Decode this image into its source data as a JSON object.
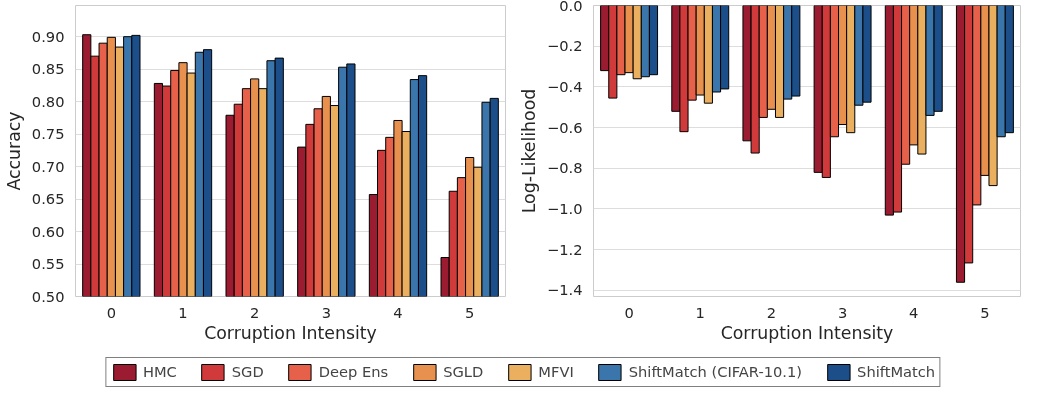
{
  "chart_data": [
    {
      "type": "bar",
      "xlabel": "Corruption Intensity",
      "ylabel": "Accuracy",
      "categories": [
        "0",
        "1",
        "2",
        "3",
        "4",
        "5"
      ],
      "ylim": [
        0.5,
        0.948
      ],
      "yticks": [
        {
          "value": 0.5,
          "label": "0.50"
        },
        {
          "value": 0.55,
          "label": "0.55"
        },
        {
          "value": 0.6,
          "label": "0.60"
        },
        {
          "value": 0.65,
          "label": "0.65"
        },
        {
          "value": 0.7,
          "label": "0.70"
        },
        {
          "value": 0.75,
          "label": "0.75"
        },
        {
          "value": 0.8,
          "label": "0.80"
        },
        {
          "value": 0.85,
          "label": "0.85"
        },
        {
          "value": 0.9,
          "label": "0.90"
        }
      ],
      "grid": "y",
      "legend": "bottom",
      "series": [
        {
          "name": "HMC",
          "color": "#9b1b30",
          "values": [
            0.903,
            0.828,
            0.779,
            0.73,
            0.657,
            0.56
          ]
        },
        {
          "name": "SGD",
          "color": "#d03a3a",
          "values": [
            0.87,
            0.824,
            0.796,
            0.765,
            0.725,
            0.662
          ]
        },
        {
          "name": "Deep Ens",
          "color": "#e6604a",
          "values": [
            0.89,
            0.848,
            0.82,
            0.789,
            0.745,
            0.683
          ]
        },
        {
          "name": "SGLD",
          "color": "#e8914f",
          "values": [
            0.899,
            0.86,
            0.835,
            0.808,
            0.771,
            0.714
          ]
        },
        {
          "name": "MFVI",
          "color": "#eab060",
          "values": [
            0.884,
            0.844,
            0.82,
            0.794,
            0.754,
            0.699
          ]
        },
        {
          "name": "ShiftMatch (CIFAR-10.1)",
          "color": "#3a75ab",
          "values": [
            0.9,
            0.876,
            0.863,
            0.853,
            0.834,
            0.799
          ]
        },
        {
          "name": "ShiftMatch",
          "color": "#1c4f8a",
          "values": [
            0.902,
            0.88,
            0.867,
            0.858,
            0.84,
            0.805
          ]
        }
      ]
    },
    {
      "type": "bar",
      "xlabel": "Corruption Intensity",
      "ylabel": "Log-Likelihood",
      "categories": [
        "0",
        "1",
        "2",
        "3",
        "4",
        "5"
      ],
      "ylim": [
        -1.43,
        0.0
      ],
      "yticks": [
        {
          "value": 0.0,
          "label": "0.0"
        },
        {
          "value": -0.2,
          "label": "−0.2"
        },
        {
          "value": -0.4,
          "label": "−0.4"
        },
        {
          "value": -0.6,
          "label": "−0.6"
        },
        {
          "value": -0.8,
          "label": "−0.8"
        },
        {
          "value": -1.0,
          "label": "−1.0"
        },
        {
          "value": -1.2,
          "label": "−1.2"
        },
        {
          "value": -1.4,
          "label": "−1.4"
        }
      ],
      "grid": "y",
      "series": [
        {
          "color": "#9b1b30",
          "values": [
            -0.32,
            -0.52,
            -0.665,
            -0.82,
            -1.03,
            -1.36
          ]
        },
        {
          "color": "#d03a3a",
          "values": [
            -0.455,
            -0.62,
            -0.725,
            -0.845,
            -1.015,
            -1.265
          ]
        },
        {
          "color": "#e6604a",
          "values": [
            -0.34,
            -0.465,
            -0.55,
            -0.645,
            -0.78,
            -0.98
          ]
        },
        {
          "color": "#e8914f",
          "values": [
            -0.33,
            -0.44,
            -0.51,
            -0.585,
            -0.685,
            -0.835
          ]
        },
        {
          "color": "#eab060",
          "values": [
            -0.36,
            -0.48,
            -0.55,
            -0.625,
            -0.73,
            -0.885
          ]
        },
        {
          "color": "#3a75ab",
          "values": [
            -0.35,
            -0.425,
            -0.46,
            -0.49,
            -0.54,
            -0.645
          ]
        },
        {
          "color": "#1c4f8a",
          "values": [
            -0.34,
            -0.41,
            -0.445,
            -0.475,
            -0.52,
            -0.625
          ]
        }
      ]
    }
  ]
}
